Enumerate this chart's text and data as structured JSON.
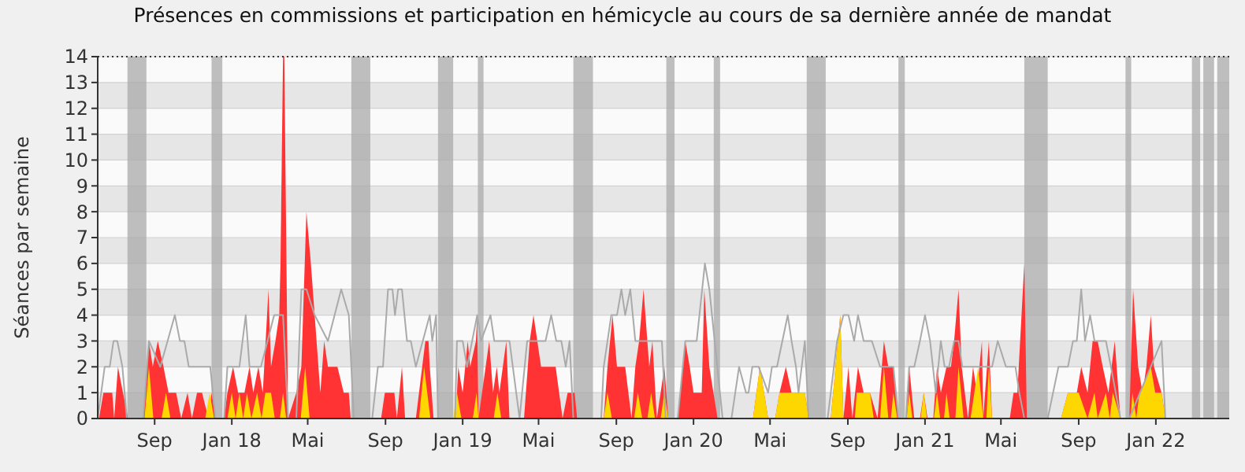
{
  "chart_data": {
    "type": "area",
    "title": "Présences en commissions et participation en hémicycle au cours de sa dernière année de mandat",
    "ylabel": "Séances par semaine",
    "xlim": [
      "2017-06-03",
      "2022-04-27"
    ],
    "xticks": [
      {
        "value": "2017-09-01",
        "label": "Sep"
      },
      {
        "value": "2018-01-01",
        "label": "Jan 18"
      },
      {
        "value": "2018-05-01",
        "label": "Mai"
      },
      {
        "value": "2018-09-01",
        "label": "Sep"
      },
      {
        "value": "2019-01-01",
        "label": "Jan 19"
      },
      {
        "value": "2019-05-01",
        "label": "Mai"
      },
      {
        "value": "2019-09-01",
        "label": "Sep"
      },
      {
        "value": "2020-01-01",
        "label": "Jan 20"
      },
      {
        "value": "2020-05-01",
        "label": "Mai"
      },
      {
        "value": "2020-09-01",
        "label": "Sep"
      },
      {
        "value": "2021-01-01",
        "label": "Jan 21"
      },
      {
        "value": "2021-05-01",
        "label": "Mai"
      },
      {
        "value": "2021-09-01",
        "label": "Sep"
      },
      {
        "value": "2022-01-01",
        "label": "Jan 22"
      }
    ],
    "ylim": [
      0,
      14
    ],
    "yticks": [
      0,
      1,
      2,
      3,
      4,
      5,
      6,
      7,
      8,
      9,
      10,
      11,
      12,
      13,
      14
    ],
    "grid": "y",
    "bands": [
      {
        "axis": "x",
        "from": "2017-07-20",
        "to": "2017-08-19",
        "color": "#aaaaaa"
      },
      {
        "axis": "x",
        "from": "2017-11-30",
        "to": "2017-12-17",
        "color": "#aaaaaa"
      },
      {
        "axis": "x",
        "from": "2018-07-09",
        "to": "2018-08-08",
        "color": "#aaaaaa"
      },
      {
        "axis": "x",
        "from": "2018-11-23",
        "to": "2018-12-17",
        "color": "#aaaaaa"
      },
      {
        "axis": "x",
        "from": "2019-01-25",
        "to": "2019-02-03",
        "color": "#aaaaaa"
      },
      {
        "axis": "x",
        "from": "2019-06-25",
        "to": "2019-07-26",
        "color": "#aaaaaa"
      },
      {
        "axis": "x",
        "from": "2019-11-19",
        "to": "2019-12-02",
        "color": "#aaaaaa"
      },
      {
        "axis": "x",
        "from": "2020-02-02",
        "to": "2020-02-12",
        "color": "#aaaaaa"
      },
      {
        "axis": "x",
        "from": "2020-06-28",
        "to": "2020-07-28",
        "color": "#aaaaaa"
      },
      {
        "axis": "x",
        "from": "2020-11-20",
        "to": "2020-11-30",
        "color": "#aaaaaa"
      },
      {
        "axis": "x",
        "from": "2021-06-07",
        "to": "2021-07-14",
        "color": "#aaaaaa"
      },
      {
        "axis": "x",
        "from": "2021-11-14",
        "to": "2021-11-23",
        "color": "#aaaaaa"
      },
      {
        "axis": "x",
        "from": "2022-02-27",
        "to": "2022-03-12",
        "color": "#aaaaaa"
      },
      {
        "axis": "x",
        "from": "2022-03-17",
        "to": "2022-04-03",
        "color": "#aaaaaa"
      },
      {
        "axis": "x",
        "from": "2022-04-08",
        "to": "2022-04-27",
        "color": "#aaaaaa"
      }
    ],
    "series": [
      {
        "type": "line",
        "color": "#aaaaaa",
        "x": [
          "2017-06-03",
          "2017-06-14",
          "2017-06-22",
          "2017-06-28",
          "2017-07-04",
          "2017-07-12",
          "2017-07-19",
          "2017-08-14",
          "2017-08-23",
          "2017-09-10",
          "2017-10-03",
          "2017-10-11",
          "2017-10-18",
          "2017-10-25",
          "2017-11-28",
          "2017-12-06",
          "2017-12-20",
          "2017-12-25",
          "2018-01-13",
          "2018-01-23",
          "2018-01-29",
          "2018-02-16",
          "2018-03-09",
          "2018-03-23",
          "2018-03-31",
          "2018-04-13",
          "2018-04-21",
          "2018-04-29",
          "2018-05-12",
          "2018-06-02",
          "2018-06-23",
          "2018-07-05",
          "2018-07-13",
          "2018-08-11",
          "2018-08-20",
          "2018-08-28",
          "2018-09-05",
          "2018-09-12",
          "2018-09-16",
          "2018-09-21",
          "2018-09-27",
          "2018-10-05",
          "2018-10-11",
          "2018-10-19",
          "2018-11-10",
          "2018-11-14",
          "2018-11-20",
          "2018-11-23",
          "2018-12-20",
          "2018-12-23",
          "2019-01-01",
          "2019-01-08",
          "2019-01-24",
          "2019-01-30",
          "2019-02-14",
          "2019-02-20",
          "2019-02-28",
          "2019-03-16",
          "2019-04-01",
          "2019-04-13",
          "2019-05-12",
          "2019-05-21",
          "2019-05-29",
          "2019-06-06",
          "2019-06-13",
          "2019-06-19",
          "2019-06-25",
          "2019-08-08",
          "2019-08-12",
          "2019-08-24",
          "2019-09-02",
          "2019-09-09",
          "2019-09-15",
          "2019-09-23",
          "2019-10-01",
          "2019-10-14",
          "2019-10-26",
          "2019-11-12",
          "2019-11-18",
          "2019-12-07",
          "2019-12-19",
          "2019-12-27",
          "2020-01-06",
          "2020-01-19",
          "2020-01-26",
          "2020-02-16",
          "2020-03-01",
          "2020-03-13",
          "2020-03-24",
          "2020-03-28",
          "2020-04-03",
          "2020-04-13",
          "2020-04-28",
          "2020-05-04",
          "2020-05-12",
          "2020-05-29",
          "2020-06-04",
          "2020-06-11",
          "2020-06-15",
          "2020-06-25",
          "2020-07-01",
          "2020-07-31",
          "2020-08-15",
          "2020-08-25",
          "2020-09-02",
          "2020-09-11",
          "2020-09-17",
          "2020-09-26",
          "2020-10-09",
          "2020-10-22",
          "2020-11-12",
          "2020-11-20",
          "2020-12-02",
          "2020-12-07",
          "2020-12-15",
          "2020-12-24",
          "2021-01-01",
          "2021-01-09",
          "2021-01-18",
          "2021-01-26",
          "2021-02-01",
          "2021-02-08",
          "2021-02-16",
          "2021-02-23",
          "2021-03-01",
          "2021-03-20",
          "2021-04-08",
          "2021-04-17",
          "2021-04-26",
          "2021-05-09",
          "2021-05-15",
          "2021-05-24",
          "2021-05-30",
          "2021-06-07",
          "2021-07-14",
          "2021-07-31",
          "2021-08-15",
          "2021-08-23",
          "2021-08-29",
          "2021-09-05",
          "2021-09-11",
          "2021-09-19",
          "2021-09-26",
          "2021-10-14",
          "2021-10-22",
          "2021-11-06",
          "2021-11-20",
          "2022-01-10",
          "2022-01-16"
        ],
        "values": [
          0,
          2,
          2,
          3,
          3,
          2,
          0,
          0,
          3,
          2,
          4,
          3,
          3,
          2,
          2,
          0,
          0,
          2,
          2,
          4,
          2,
          2,
          4,
          4,
          0,
          0,
          5,
          5,
          4,
          3,
          5,
          4,
          0,
          0,
          2,
          2,
          5,
          5,
          4,
          5,
          5,
          3,
          3,
          2,
          4,
          3,
          4,
          0,
          0,
          3,
          3,
          2,
          4,
          3,
          4,
          3,
          3,
          3,
          0,
          3,
          3,
          4,
          3,
          3,
          2,
          3,
          0,
          0,
          2,
          4,
          4,
          5,
          4,
          5,
          3,
          3,
          3,
          3,
          0,
          0,
          3,
          3,
          3,
          6,
          5,
          0,
          0,
          2,
          1,
          1,
          2,
          2,
          1,
          2,
          2,
          4,
          3,
          2,
          1,
          3,
          0,
          0,
          3,
          4,
          4,
          3,
          4,
          3,
          3,
          2,
          2,
          0,
          0,
          2,
          2,
          3,
          4,
          3,
          1,
          3,
          2,
          2,
          3,
          3,
          2,
          2,
          2,
          2,
          3,
          2,
          2,
          2,
          1,
          0,
          0,
          2,
          2,
          3,
          3,
          5,
          3,
          4,
          3,
          3,
          2,
          0,
          0,
          3,
          0
        ]
      },
      {
        "color": "#ff3333",
        "x": [
          "2017-06-05",
          "2017-06-12",
          "2017-06-26",
          "2017-06-29",
          "2017-07-05",
          "2017-07-13",
          "2017-07-21",
          "2017-08-14",
          "2017-08-23",
          "2017-08-29",
          "2017-09-06",
          "2017-09-15",
          "2017-09-23",
          "2017-10-05",
          "2017-10-13",
          "2017-10-23",
          "2017-10-30",
          "2017-11-07",
          "2017-11-15",
          "2017-11-25",
          "2017-11-30",
          "2017-12-06",
          "2017-12-20",
          "2017-12-25",
          "2018-01-03",
          "2018-01-11",
          "2018-01-21",
          "2018-01-29",
          "2018-02-04",
          "2018-02-12",
          "2018-02-19",
          "2018-02-28",
          "2018-03-04",
          "2018-03-11",
          "2018-03-17",
          "2018-03-19",
          "2018-03-23",
          "2018-03-25",
          "2018-03-31",
          "2018-04-13",
          "2018-04-21",
          "2018-04-29",
          "2018-05-06",
          "2018-05-12",
          "2018-05-21",
          "2018-05-27",
          "2018-06-02",
          "2018-06-17",
          "2018-06-27",
          "2018-07-05",
          "2018-07-08",
          "2018-08-25",
          "2018-08-31",
          "2018-09-15",
          "2018-09-19",
          "2018-09-27",
          "2018-10-02",
          "2018-10-19",
          "2018-10-24",
          "2018-11-03",
          "2018-11-08",
          "2018-11-10",
          "2018-11-16",
          "2018-12-21",
          "2018-12-25",
          "2019-01-01",
          "2019-01-09",
          "2019-01-13",
          "2019-01-22",
          "2019-01-24",
          "2019-01-26",
          "2019-02-12",
          "2019-02-18",
          "2019-02-24",
          "2019-02-28",
          "2019-03-11",
          "2019-03-16",
          "2019-04-08",
          "2019-04-17",
          "2019-04-23",
          "2019-05-05",
          "2019-05-28",
          "2019-06-08",
          "2019-06-16",
          "2019-06-27",
          "2019-07-01",
          "2019-08-12",
          "2019-08-18",
          "2019-08-26",
          "2019-09-02",
          "2019-09-15",
          "2019-09-25",
          "2019-10-01",
          "2019-10-07",
          "2019-10-14",
          "2019-10-20",
          "2019-10-23",
          "2019-10-28",
          "2019-11-04",
          "2019-11-16",
          "2019-11-22",
          "2019-12-07",
          "2019-12-19",
          "2019-12-26",
          "2020-01-01",
          "2020-01-10",
          "2020-01-14",
          "2020-01-18",
          "2020-01-26",
          "2020-02-08",
          "2020-04-04",
          "2020-04-15",
          "2020-04-28",
          "2020-05-09",
          "2020-05-16",
          "2020-05-26",
          "2020-06-04",
          "2020-06-25",
          "2020-07-01",
          "2020-08-05",
          "2020-08-20",
          "2020-08-25",
          "2020-09-02",
          "2020-09-08",
          "2020-09-17",
          "2020-09-26",
          "2020-10-06",
          "2020-10-18",
          "2020-10-28",
          "2020-11-04",
          "2020-11-12",
          "2020-11-20",
          "2020-12-03",
          "2020-12-07",
          "2020-12-15",
          "2020-12-24",
          "2020-12-30",
          "2021-01-05",
          "2021-01-14",
          "2021-01-20",
          "2021-01-26",
          "2021-02-04",
          "2021-02-11",
          "2021-02-16",
          "2021-02-23",
          "2021-02-28",
          "2021-03-10",
          "2021-03-18",
          "2021-03-24",
          "2021-04-01",
          "2021-04-03",
          "2021-04-12",
          "2021-04-17",
          "2021-05-15",
          "2021-05-21",
          "2021-05-27",
          "2021-06-07",
          "2021-06-11",
          "2021-08-04",
          "2021-08-15",
          "2021-08-29",
          "2021-09-05",
          "2021-09-15",
          "2021-09-23",
          "2021-10-01",
          "2021-10-09",
          "2021-10-18",
          "2021-10-28",
          "2021-11-06",
          "2021-11-20",
          "2021-11-26",
          "2021-12-04",
          "2021-12-11",
          "2021-12-17",
          "2021-12-24",
          "2021-12-29",
          "2022-01-10",
          "2022-01-16"
        ],
        "values": [
          0,
          1,
          1,
          0,
          2,
          1,
          0,
          0,
          3,
          2,
          3,
          2,
          1,
          1,
          0,
          1,
          0,
          1,
          1,
          0,
          1,
          0,
          0,
          1,
          2,
          1,
          1,
          2,
          1,
          2,
          1,
          5,
          2,
          3,
          4,
          6,
          14,
          14,
          0,
          1,
          2,
          8,
          6,
          4,
          1,
          3,
          2,
          2,
          1,
          1,
          0,
          0,
          1,
          1,
          0,
          2,
          0,
          0,
          1,
          3,
          3,
          2,
          0,
          0,
          2,
          1,
          3,
          2,
          3,
          4,
          0,
          3,
          1,
          2,
          1,
          3,
          0,
          0,
          3,
          4,
          2,
          2,
          0,
          1,
          1,
          0,
          0,
          2,
          4,
          2,
          2,
          0,
          2,
          3,
          5,
          3,
          2,
          3,
          0,
          2,
          0,
          0,
          3,
          2,
          1,
          1,
          1,
          5,
          2,
          0,
          0,
          2,
          0,
          0,
          1,
          2,
          1,
          1,
          0,
          0,
          4,
          0,
          2,
          0,
          2,
          1,
          1,
          0,
          3,
          2,
          2,
          0,
          0,
          2,
          0,
          0,
          1,
          0,
          0,
          2,
          1,
          2,
          2,
          3,
          5,
          2,
          0,
          2,
          1,
          3,
          0,
          3,
          0,
          0,
          1,
          1,
          6,
          0,
          0,
          1,
          1,
          2,
          1,
          3,
          3,
          2,
          1,
          3,
          0,
          0,
          5,
          2,
          1,
          2,
          4,
          2,
          1,
          0
        ]
      },
      {
        "color": "#ffd700",
        "x": [
          "2017-08-16",
          "2017-08-23",
          "2017-08-30",
          "2017-09-12",
          "2017-09-19",
          "2017-09-26",
          "2017-11-20",
          "2017-11-27",
          "2017-12-04",
          "2017-12-25",
          "2018-01-01",
          "2018-01-07",
          "2018-01-13",
          "2018-01-19",
          "2018-01-25",
          "2018-02-01",
          "2018-02-10",
          "2018-02-17",
          "2018-02-23",
          "2018-03-04",
          "2018-03-10",
          "2018-03-18",
          "2018-03-23",
          "2018-03-28",
          "2018-04-20",
          "2018-04-27",
          "2018-05-04",
          "2018-10-24",
          "2018-11-01",
          "2018-11-11",
          "2018-12-17",
          "2018-12-23",
          "2018-12-30",
          "2019-01-17",
          "2019-01-23",
          "2019-01-26",
          "2019-02-19",
          "2019-02-25",
          "2019-03-03",
          "2019-08-12",
          "2019-08-18",
          "2019-08-25",
          "2019-09-29",
          "2019-10-05",
          "2019-10-12",
          "2019-10-20",
          "2019-10-26",
          "2019-11-01",
          "2019-11-10",
          "2019-11-16",
          "2019-11-22",
          "2020-04-04",
          "2020-04-15",
          "2020-04-28",
          "2020-05-09",
          "2020-05-16",
          "2020-05-26",
          "2020-06-04",
          "2020-06-25",
          "2020-07-01",
          "2020-08-05",
          "2020-08-20",
          "2020-08-25",
          "2020-09-12",
          "2020-09-15",
          "2020-10-06",
          "2020-10-12",
          "2020-10-22",
          "2020-10-28",
          "2020-11-04",
          "2020-11-08",
          "2020-11-12",
          "2020-11-18",
          "2020-12-03",
          "2020-12-07",
          "2020-12-12",
          "2020-12-25",
          "2020-12-30",
          "2021-01-04",
          "2021-01-15",
          "2021-01-20",
          "2021-01-25",
          "2021-01-31",
          "2021-02-04",
          "2021-02-09",
          "2021-02-18",
          "2021-02-23",
          "2021-03-03",
          "2021-03-14",
          "2021-03-20",
          "2021-03-26",
          "2021-04-03",
          "2021-04-08",
          "2021-04-12",
          "2021-04-17",
          "2021-08-04",
          "2021-08-15",
          "2021-09-01",
          "2021-09-15",
          "2021-09-26",
          "2021-10-01",
          "2021-10-14",
          "2021-10-20",
          "2021-10-25",
          "2021-11-06",
          "2021-11-22",
          "2021-11-25",
          "2021-12-01",
          "2021-12-06",
          "2021-12-24",
          "2021-12-31",
          "2022-01-10",
          "2022-01-16"
        ],
        "values": [
          0,
          2,
          0,
          0,
          1,
          0,
          0,
          1,
          0,
          0,
          1,
          0,
          1,
          0,
          1,
          0,
          1,
          0,
          1,
          1,
          0,
          0,
          1,
          0,
          0,
          2,
          0,
          0,
          2,
          0,
          0,
          1,
          0,
          0,
          1,
          0,
          0,
          1,
          0,
          0,
          1,
          0,
          0,
          1,
          0,
          0,
          1,
          0,
          0,
          1,
          0,
          0,
          2,
          0,
          0,
          1,
          1,
          1,
          1,
          0,
          0,
          4,
          0,
          0,
          1,
          1,
          0,
          0,
          2,
          0,
          0,
          1,
          0,
          0,
          1,
          0,
          0,
          1,
          0,
          0,
          1,
          0,
          0,
          1,
          0,
          0,
          2,
          0,
          0,
          1,
          2,
          0,
          0,
          2,
          0,
          0,
          1,
          1,
          0,
          1,
          0,
          1,
          0,
          1,
          0,
          0,
          1,
          0,
          1,
          2,
          1,
          1,
          0
        ]
      }
    ]
  }
}
